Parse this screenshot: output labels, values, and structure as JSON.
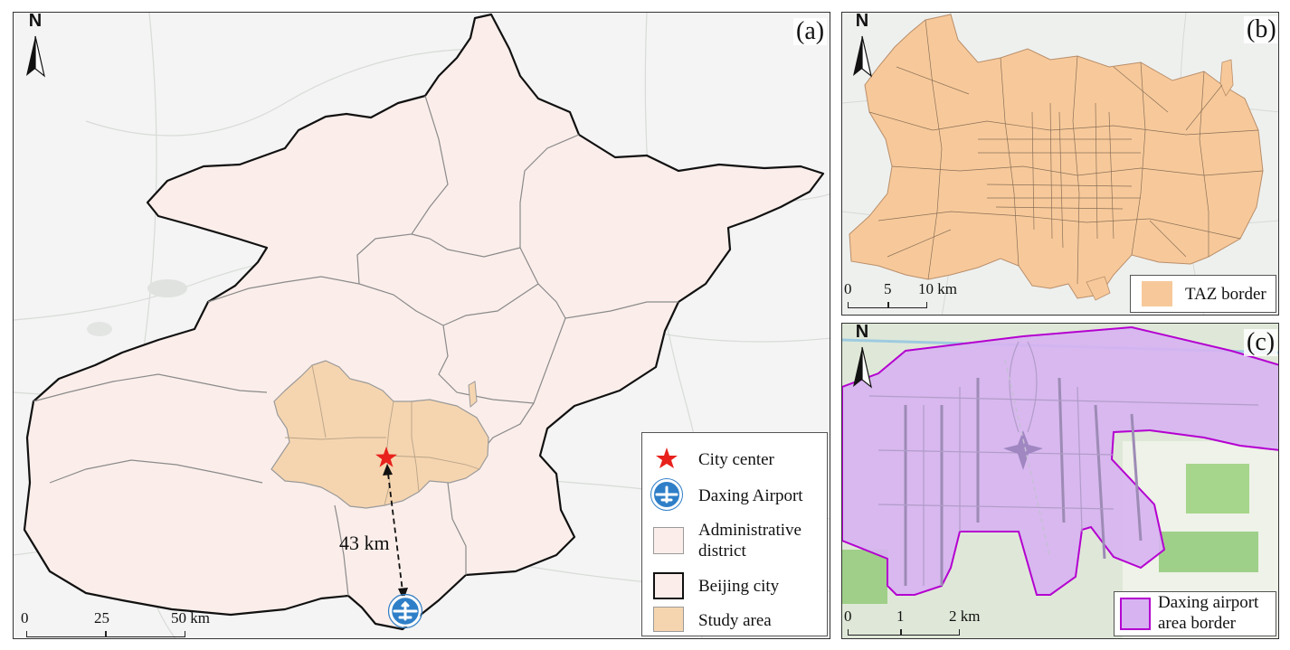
{
  "panel_a": {
    "label": "(a)",
    "north": "N",
    "distance": "43 km",
    "scale_ticks": [
      "0",
      "25",
      "50 km"
    ],
    "legend": [
      {
        "icon": "red-star-icon",
        "label": "City center",
        "color": "#e8211c"
      },
      {
        "icon": "airplane-icon",
        "label": "Daxing Airport",
        "color": "#2f7fc8"
      },
      {
        "icon": "swatch-administrative-district",
        "label_lines": [
          "Administrative",
          "district"
        ],
        "fill": "#fbeeea",
        "stroke": "#9a9a9a"
      },
      {
        "icon": "swatch-beijing-city",
        "label": "Beijing city",
        "fill": "#fbeeea",
        "stroke": "#111111"
      },
      {
        "icon": "swatch-study-area",
        "label": "Study area",
        "fill": "#f5d5b0",
        "stroke": "#9a9a9a"
      }
    ]
  },
  "panel_b": {
    "label": "(b)",
    "north": "N",
    "scale_ticks": [
      "0",
      "5",
      "10 km"
    ],
    "legend": [
      {
        "icon": "swatch-taz-border",
        "label": "TAZ border",
        "fill": "#f7c99a"
      }
    ]
  },
  "panel_c": {
    "label": "(c)",
    "north": "N",
    "scale_ticks": [
      "0",
      "1",
      "2 km"
    ],
    "legend": [
      {
        "icon": "swatch-airport-border",
        "label_lines": [
          "Daxing airport",
          "area border"
        ],
        "fill": "#d7b3f2",
        "stroke": "#b400d0"
      }
    ]
  }
}
